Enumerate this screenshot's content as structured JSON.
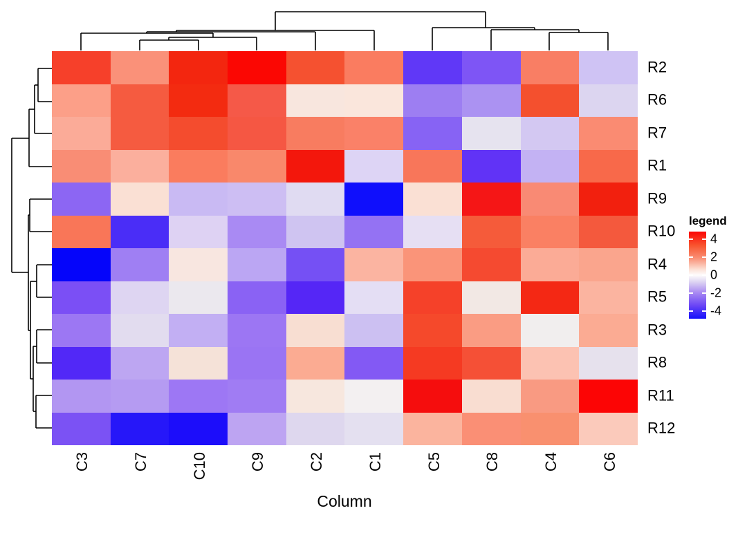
{
  "chart_data": {
    "type": "heatmap",
    "title": "",
    "xlabel": "Column",
    "ylabel": "",
    "columns": [
      "C3",
      "C7",
      "C10",
      "C9",
      "C2",
      "C1",
      "C5",
      "C8",
      "C4",
      "C6"
    ],
    "rows": [
      "R2",
      "R6",
      "R7",
      "R1",
      "R9",
      "R10",
      "R4",
      "R5",
      "R3",
      "R8",
      "R11",
      "R12"
    ],
    "values": [
      [
        3.4,
        1.9,
        3.8,
        4.4,
        3.0,
        2.3,
        -3.0,
        -2.5,
        2.3,
        -0.9
      ],
      [
        1.7,
        2.9,
        3.7,
        2.9,
        0.5,
        0.5,
        -1.9,
        -1.6,
        3.1,
        -0.8
      ],
      [
        1.5,
        2.9,
        3.2,
        2.9,
        2.3,
        2.2,
        -2.3,
        -0.4,
        -1.0,
        2.0
      ],
      [
        2.0,
        1.4,
        2.3,
        2.1,
        4.2,
        -0.7,
        2.4,
        -3.0,
        -1.3,
        2.7
      ],
      [
        -2.2,
        0.6,
        -1.2,
        -1.1,
        -0.6,
        -4.4,
        0.6,
        4.1,
        2.1,
        4.0
      ],
      [
        2.4,
        -3.4,
        -0.7,
        -1.7,
        -1.0,
        -2.1,
        -0.5,
        2.9,
        2.2,
        2.9
      ],
      [
        -4.6,
        -1.8,
        0.4,
        -1.4,
        -2.7,
        1.3,
        1.8,
        3.1,
        1.4,
        1.5
      ],
      [
        -2.6,
        -0.6,
        -0.2,
        -2.3,
        -3.2,
        -0.5,
        3.3,
        0.3,
        3.6,
        1.3
      ],
      [
        -2.0,
        -0.4,
        -1.3,
        -2.0,
        0.6,
        -1.0,
        3.1,
        1.7,
        0.1,
        1.4
      ],
      [
        -3.3,
        -1.4,
        0.5,
        -2.0,
        1.4,
        -2.4,
        3.4,
        3.0,
        1.1,
        -0.4
      ],
      [
        -1.5,
        -1.4,
        -1.9,
        -1.8,
        0.4,
        0.1,
        4.3,
        0.6,
        1.7,
        4.4
      ],
      [
        -2.5,
        -3.7,
        -3.9,
        -1.4,
        -0.6,
        -0.5,
        1.3,
        1.9,
        1.9,
        0.8
      ]
    ],
    "cell_colors": [
      [
        "#f6402a",
        "#fa9179",
        "#f3260f",
        "#fb0703",
        "#f55130",
        "#fa7c60",
        "#6038f7",
        "#7e55f5",
        "#f97e64",
        "#cfc3f4"
      ],
      [
        "#fc9f88",
        "#f55b40",
        "#f32b10",
        "#f55948",
        "#f8e6de",
        "#fae6dc",
        "#9d7ef2",
        "#ab92f2",
        "#f4502e",
        "#dcd5f0"
      ],
      [
        "#fbab98",
        "#f55b40",
        "#f44c2e",
        "#f55743",
        "#f87c60",
        "#fa8168",
        "#8763f4",
        "#e6e3ef",
        "#d3c8f2",
        "#fa8b72"
      ],
      [
        "#f98d75",
        "#fbaf9d",
        "#fa7c5e",
        "#f9886b",
        "#f3170c",
        "#ddd4f5",
        "#f8765a",
        "#6133f6",
        "#c3b2f3",
        "#f8694a"
      ],
      [
        "#8c66f3",
        "#fae0d4",
        "#c9baf3",
        "#cdbef3",
        "#e0dbf2",
        "#0f0ffc",
        "#fae0d4",
        "#f51616",
        "#f98a74",
        "#f2200e"
      ],
      [
        "#f97658",
        "#4a2df7",
        "#ded2f3",
        "#a98af3",
        "#cfc4f1",
        "#9472f3",
        "#e6dff3",
        "#f55b3a",
        "#fa8063",
        "#f4593d"
      ],
      [
        "#0505fa",
        "#9f7ff3",
        "#f8e6e0",
        "#bba6f3",
        "#7550f4",
        "#fbb4a1",
        "#fa9479",
        "#f54a30",
        "#fbab96",
        "#faa58d"
      ],
      [
        "#7b4ff5",
        "#ded5f2",
        "#ebe8ee",
        "#8a62f4",
        "#5526f6",
        "#e4def4",
        "#f54129",
        "#f2e8e4",
        "#f42814",
        "#fbb4a0"
      ],
      [
        "#9c77f3",
        "#e2dcef",
        "#c2aff3",
        "#9c76f3",
        "#f8ded2",
        "#ccc0f2",
        "#f5492b",
        "#fa9c83",
        "#f1eeee",
        "#fbab93"
      ],
      [
        "#5228f7",
        "#bda6f2",
        "#f5e2d8",
        "#9a74f3",
        "#fbab92",
        "#8359f4",
        "#f53a22",
        "#f55036",
        "#fcc2b2",
        "#e6e1ed"
      ],
      [
        "#b296f2",
        "#b59bf2",
        "#9d77f4",
        "#a07cf3",
        "#f7e7de",
        "#f3f0f1",
        "#f50d0d",
        "#f9ddd1",
        "#f99a82",
        "#fc0505"
      ],
      [
        "#7b52f4",
        "#2617f9",
        "#1c0dfa",
        "#bda4f2",
        "#ded7ee",
        "#e4e0f0",
        "#fbb49e",
        "#fa8f75",
        "#f9906f",
        "#fbcabb"
      ]
    ],
    "legend": {
      "title": "legend",
      "ticks": [
        4,
        2,
        0,
        -2,
        -4
      ],
      "vmax": 4.85,
      "color_high": "#fb0505",
      "color_mid": "#ffffff",
      "color_low": "#1410fb"
    },
    "col_dendrogram_segments": [
      [
        398,
        17,
        702,
        17
      ],
      [
        398,
        17,
        398,
        44
      ],
      [
        702,
        17,
        702,
        40
      ],
      [
        255,
        44,
        541,
        44
      ],
      [
        541,
        44,
        541,
        73
      ],
      [
        255,
        44,
        255,
        46
      ],
      [
        212,
        46,
        456,
        46
      ],
      [
        456,
        46,
        456,
        73
      ],
      [
        212,
        46,
        212,
        48
      ],
      [
        117,
        48,
        308,
        48
      ],
      [
        117,
        48,
        117,
        73
      ],
      [
        308,
        48,
        308,
        54
      ],
      [
        244,
        54,
        371,
        54
      ],
      [
        371,
        54,
        371,
        73
      ],
      [
        244,
        54,
        244,
        58
      ],
      [
        202,
        58,
        287,
        58
      ],
      [
        202,
        58,
        202,
        73
      ],
      [
        287,
        58,
        287,
        73
      ],
      [
        625,
        40,
        773,
        40
      ],
      [
        625,
        40,
        625,
        73
      ],
      [
        773,
        40,
        773,
        43
      ],
      [
        710,
        43,
        837,
        43
      ],
      [
        710,
        43,
        710,
        73
      ],
      [
        837,
        43,
        837,
        47
      ],
      [
        794,
        47,
        879,
        47
      ],
      [
        794,
        47,
        794,
        73
      ],
      [
        879,
        47,
        879,
        73
      ]
    ],
    "row_dendrogram_segments": [
      [
        17,
        200,
        17,
        394
      ],
      [
        17,
        200,
        42,
        200
      ],
      [
        17,
        394,
        41,
        394
      ],
      [
        42,
        158,
        42,
        241
      ],
      [
        42,
        158,
        50,
        158
      ],
      [
        42,
        241,
        75,
        241
      ],
      [
        50,
        123,
        50,
        193
      ],
      [
        50,
        123,
        55,
        123
      ],
      [
        50,
        193,
        75,
        193
      ],
      [
        55,
        99,
        55,
        147
      ],
      [
        55,
        99,
        75,
        99
      ],
      [
        55,
        147,
        75,
        147
      ],
      [
        41,
        311,
        41,
        478
      ],
      [
        41,
        311,
        43,
        311
      ],
      [
        41,
        478,
        44,
        478
      ],
      [
        43,
        288,
        43,
        335
      ],
      [
        43,
        288,
        75,
        288
      ],
      [
        43,
        335,
        75,
        335
      ],
      [
        44,
        407,
        44,
        548
      ],
      [
        44,
        407,
        53,
        407
      ],
      [
        44,
        548,
        48,
        548
      ],
      [
        53,
        383,
        53,
        430
      ],
      [
        53,
        383,
        75,
        383
      ],
      [
        53,
        430,
        75,
        430
      ],
      [
        48,
        501,
        48,
        595
      ],
      [
        48,
        501,
        53,
        501
      ],
      [
        48,
        595,
        52,
        595
      ],
      [
        53,
        477,
        53,
        525
      ],
      [
        53,
        477,
        75,
        477
      ],
      [
        53,
        525,
        75,
        525
      ],
      [
        52,
        572,
        52,
        619
      ],
      [
        52,
        572,
        75,
        572
      ],
      [
        52,
        619,
        75,
        619
      ]
    ]
  }
}
